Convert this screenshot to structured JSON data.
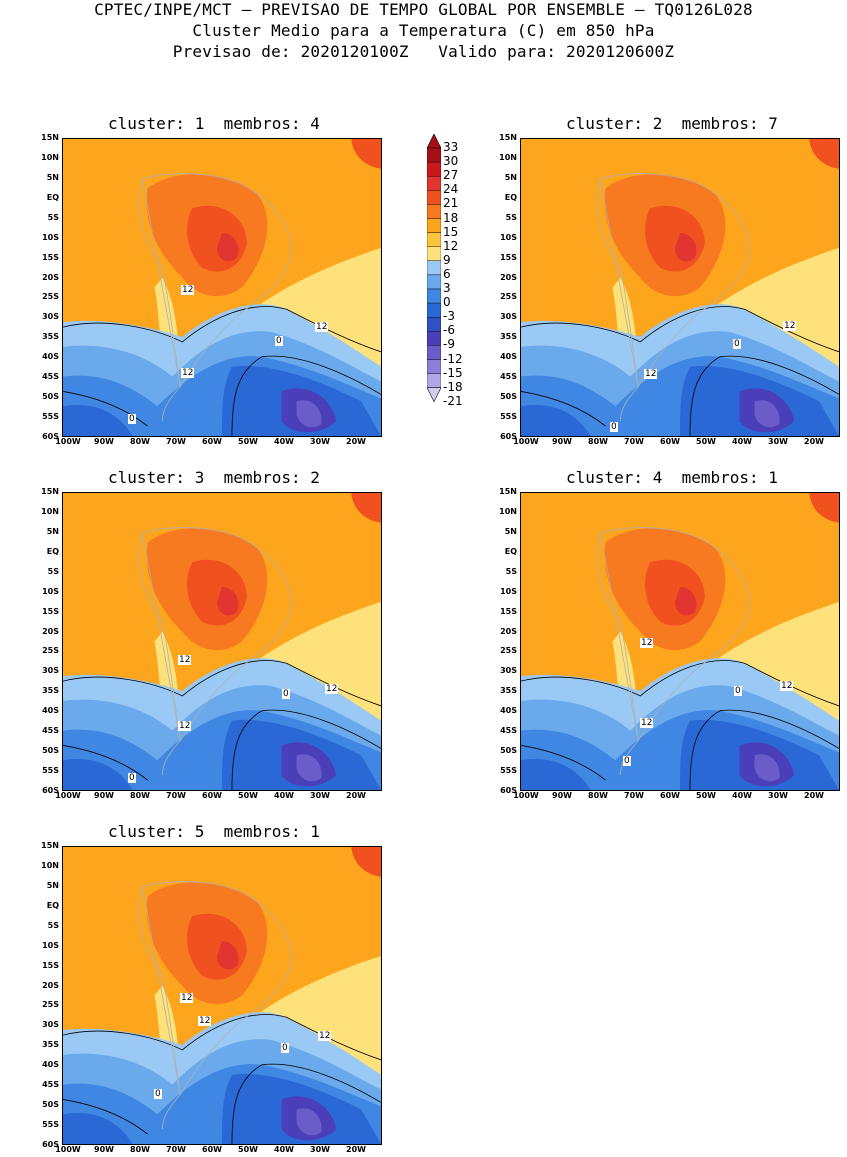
{
  "header": {
    "line1": "CPTEC/INPE/MCT – PREVISAO DE TEMPO GLOBAL POR ENSEMBLE – TQ0126L028",
    "line2": "Cluster Medio para a Temperatura (C) em 850 hPa",
    "line3": "Previsao de: 2020120100Z   Valido para: 2020120600Z"
  },
  "panels": [
    {
      "title": "cluster: 1  membros: 4"
    },
    {
      "title": "cluster: 2  membros: 7"
    },
    {
      "title": "cluster: 3  membros: 2"
    },
    {
      "title": "cluster: 4  membros: 1"
    },
    {
      "title": "cluster: 5  membros: 1"
    }
  ],
  "lat_labels": [
    "15N",
    "10N",
    "5N",
    "EQ",
    "5S",
    "10S",
    "15S",
    "20S",
    "25S",
    "30S",
    "35S",
    "40S",
    "45S",
    "50S",
    "55S",
    "60S"
  ],
  "lon_labels": [
    "100W",
    "90W",
    "80W",
    "70W",
    "60W",
    "50W",
    "40W",
    "30W",
    "20W"
  ],
  "colorbar": {
    "labels": [
      "33",
      "30",
      "27",
      "24",
      "21",
      "18",
      "15",
      "12",
      "9",
      "6",
      "3",
      "0",
      "-3",
      "-6",
      "-9",
      "-12",
      "-15",
      "-18",
      "-21"
    ],
    "colors": [
      "#a50f15",
      "#cb181d",
      "#e03530",
      "#f0511f",
      "#f77a20",
      "#fda51c",
      "#fcc33d",
      "#fde17a",
      "#99c9f4",
      "#6aa9ec",
      "#3f87e2",
      "#2a68d6",
      "#3150c4",
      "#4a3fb8",
      "#6a5cc9",
      "#8d7fd8",
      "#b3a6e6",
      "#d4cbf0"
    ]
  },
  "contour_labels": {
    "p1": [
      "12",
      "12",
      "12",
      "0",
      "0"
    ],
    "p2": [
      "12",
      "12",
      "0",
      "0"
    ],
    "p3": [
      "12",
      "12",
      "12",
      "0",
      "0"
    ],
    "p4": [
      "12",
      "12",
      "12",
      "0",
      "0"
    ],
    "p5": [
      "12",
      "12",
      "12",
      "0",
      "0"
    ]
  },
  "fields": {
    "orange": "#fda51c",
    "dark_orange": "#f77a20",
    "red": "#f0511f",
    "deep_red": "#e03530",
    "yellow": "#fde17a",
    "light_blue": "#99c9f4",
    "mid_blue": "#6aa9ec",
    "blue": "#3f87e2",
    "deep_blue": "#2a68d6",
    "indigo": "#4a3fb8",
    "violet": "#6a5cc9"
  }
}
